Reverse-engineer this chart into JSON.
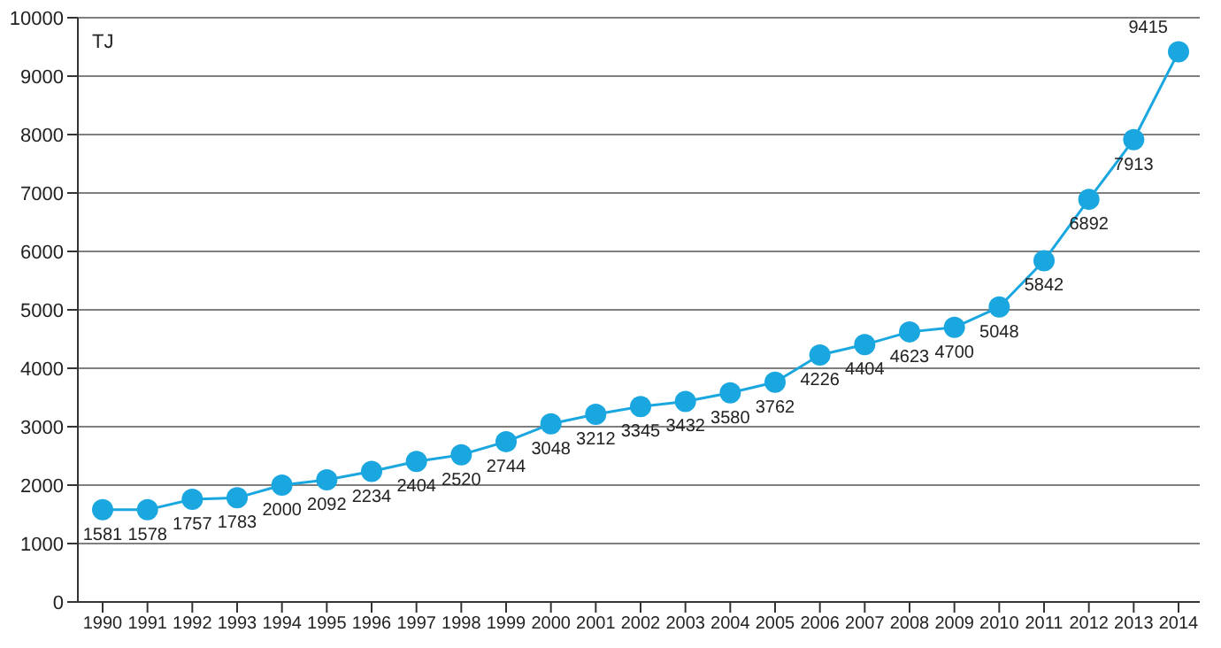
{
  "chart_data": {
    "type": "line",
    "ylabel": "TJ",
    "categories": [
      "1990",
      "1991",
      "1992",
      "1993",
      "1994",
      "1995",
      "1996",
      "1997",
      "1998",
      "1999",
      "2000",
      "2001",
      "2002",
      "2003",
      "2004",
      "2005",
      "2006",
      "2007",
      "2008",
      "2009",
      "2010",
      "2011",
      "2012",
      "2013",
      "2014"
    ],
    "series": [
      {
        "color": "#1aa7e0",
        "values": [
          1581,
          1578,
          1757,
          1783,
          2000,
          2092,
          2234,
          2404,
          2520,
          2744,
          3048,
          3212,
          3345,
          3432,
          3580,
          3762,
          4226,
          4404,
          4623,
          4700,
          5048,
          5842,
          6892,
          7913,
          9415
        ]
      }
    ],
    "ylim": [
      0,
      10000
    ],
    "yticks": [
      0,
      1000,
      2000,
      3000,
      4000,
      5000,
      6000,
      7000,
      8000,
      9000,
      10000
    ],
    "grid": "y",
    "marker": "circle",
    "line_style": "solid",
    "data_labels": true
  }
}
